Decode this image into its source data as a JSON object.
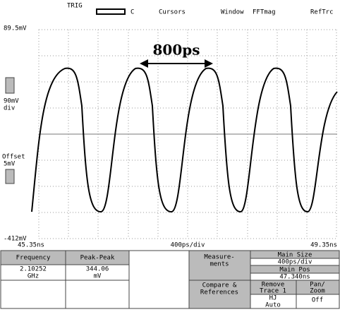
{
  "menu": [
    "TRIG",
    "C",
    "Cursors",
    "Window",
    "FFTmag",
    "RefTrc"
  ],
  "axis": {
    "top": "89.5mV",
    "bottom": "-412mV",
    "scale": [
      "90mV",
      "div"
    ],
    "offset": [
      "Offset",
      "5mV"
    ],
    "left_time": "45.35ns",
    "center_time": "400ps/div",
    "right_time": "49.35ns"
  },
  "annotation": "800ps",
  "table": {
    "headers": [
      "Frequency",
      "Peak-Peak"
    ],
    "values": [
      [
        "2.10252",
        "GHz"
      ],
      [
        "344.06",
        "mV"
      ]
    ],
    "measurements": [
      "Measure-",
      "ments"
    ],
    "main_size": [
      "Main Size",
      "400ps/div"
    ],
    "main_pos": [
      "Main Pos",
      "47.340ns"
    ],
    "compare": [
      "Compare &",
      "References"
    ],
    "remove": [
      "Remove",
      "Trace 1"
    ],
    "pan": [
      "Pan/",
      "Zoom"
    ],
    "hj": [
      "HJ",
      "Auto"
    ],
    "off": "Off"
  }
}
